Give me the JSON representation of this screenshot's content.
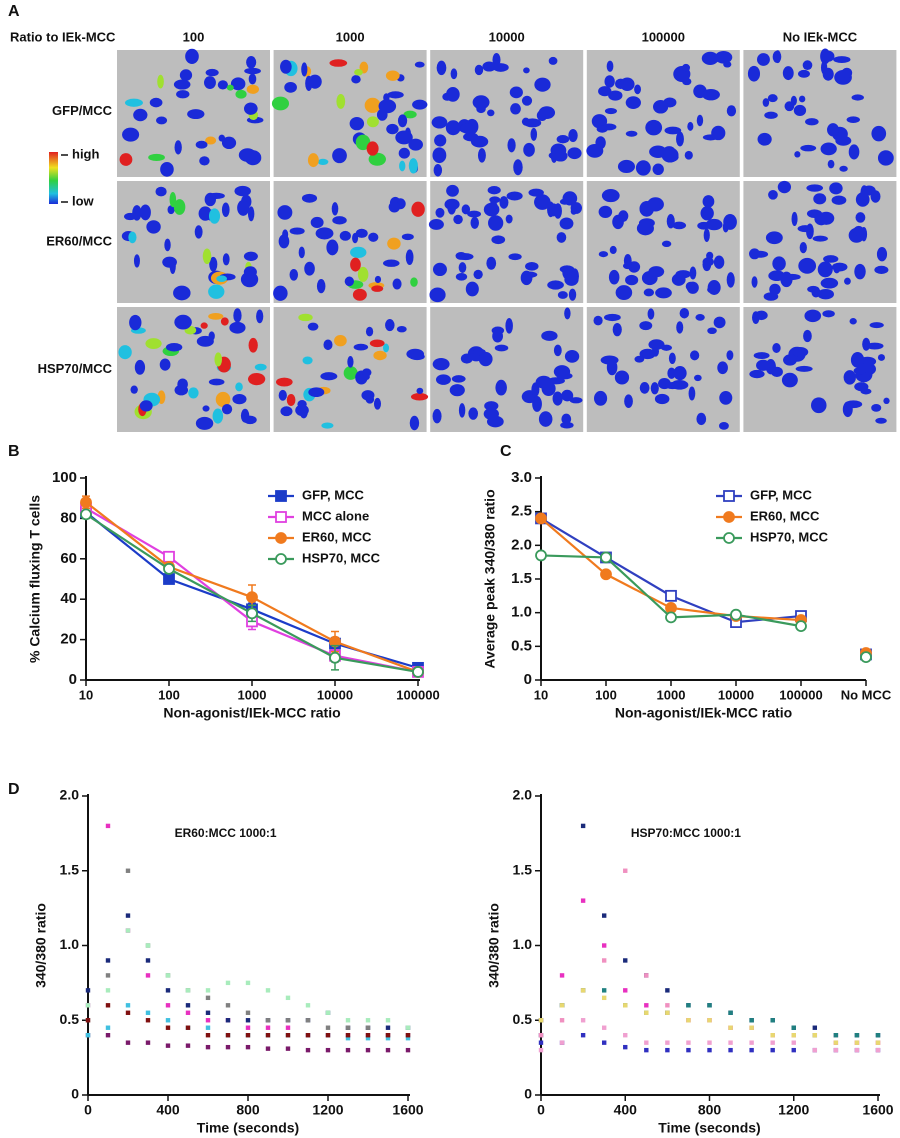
{
  "panel_a": {
    "panel": "A",
    "header": "Ratio to IEk-MCC",
    "columns": [
      "100",
      "1000",
      "10000",
      "100000",
      "No IEk-MCC"
    ],
    "rows": [
      "GFP/MCC",
      "ER60/MCC",
      "HSP70/MCC"
    ],
    "scale_high": "high",
    "scale_low": "low"
  },
  "chart_data": [
    {
      "type": "line",
      "panel": "B",
      "xscale": "log",
      "x": [
        10,
        100,
        1000,
        10000,
        100000
      ],
      "xlim": [
        10,
        100000
      ],
      "xticks": [
        10,
        100,
        1000,
        10000,
        100000
      ],
      "ylim": [
        0,
        100
      ],
      "yticks": [
        0,
        20,
        40,
        60,
        80,
        100
      ],
      "xlabel": "Non-agonist/IEk-MCC ratio",
      "ylabel": "% Calcium fluxing T cells",
      "legend": "upper-right",
      "series": [
        {
          "name": "GFP, MCC",
          "color": "#1c3cc8",
          "marker": "square",
          "filled": true,
          "values": [
            83,
            50,
            35,
            18,
            6
          ],
          "errors": [
            2,
            1,
            3,
            3,
            2
          ]
        },
        {
          "name": "MCC alone",
          "color": "#e040e0",
          "marker": "square",
          "filled": false,
          "values": [
            85,
            61,
            29,
            12,
            4
          ],
          "errors": [
            2,
            2,
            4,
            3,
            1
          ]
        },
        {
          "name": "ER60, MCC",
          "color": "#f07a1e",
          "marker": "circle",
          "filled": true,
          "values": [
            88,
            56,
            41,
            19,
            4
          ],
          "errors": [
            3,
            2,
            6,
            5,
            1
          ]
        },
        {
          "name": "HSP70, MCC",
          "color": "#3a9a5c",
          "marker": "circle",
          "filled": false,
          "values": [
            82,
            55,
            33,
            11,
            4
          ],
          "errors": [
            2,
            2,
            4,
            6,
            1
          ]
        }
      ]
    },
    {
      "type": "line",
      "panel": "C",
      "categories": [
        "10",
        "100",
        "1000",
        "10000",
        "100000",
        "No MCC"
      ],
      "ylim": [
        0,
        3
      ],
      "yticks": [
        0,
        0.5,
        {
          "value": 1,
          "label": "1.0"
        },
        1.5,
        {
          "value": 2,
          "label": "2.0"
        },
        2.5,
        {
          "value": 3,
          "label": "3.0"
        }
      ],
      "xlabel": "Non-agonist/IEk-MCC ratio",
      "ylabel": "Average peak 340/380 ratio",
      "legend": "upper-right",
      "series": [
        {
          "name": "GFP, MCC",
          "color": "#3040c0",
          "marker": "square",
          "filled": false,
          "values": [
            2.4,
            1.82,
            1.25,
            0.86,
            0.95,
            0.38
          ]
        },
        {
          "name": "ER60, MCC",
          "color": "#f07a1e",
          "marker": "circle",
          "filled": true,
          "values": [
            2.4,
            1.57,
            1.07,
            0.95,
            0.89,
            0.4
          ]
        },
        {
          "name": "HSP70, MCC",
          "color": "#3a9a5c",
          "marker": "circle",
          "filled": false,
          "values": [
            1.85,
            1.82,
            0.93,
            0.97,
            0.8,
            0.34
          ]
        }
      ]
    },
    {
      "type": "scatter",
      "panel": "D",
      "title": "ER60:MCC 1000:1",
      "x": [
        0,
        100,
        200,
        300,
        400,
        500,
        600,
        700,
        800,
        900,
        1000,
        1100,
        1200,
        1300,
        1400,
        1500,
        1600
      ],
      "xlim": [
        0,
        1600
      ],
      "xticks": [
        0,
        400,
        800,
        1200,
        1600
      ],
      "ylim": [
        0,
        2
      ],
      "yticks": [
        0,
        0.5,
        {
          "value": 1,
          "label": "1.0"
        },
        1.5,
        {
          "value": 2,
          "label": "2.0"
        }
      ],
      "xlabel": "Time (seconds)",
      "ylabel": "340/380 ratio",
      "series": [
        {
          "color": "#e830c0",
          "values": [
            0.6,
            1.8,
            1.1,
            0.8,
            0.6,
            0.55,
            0.5,
            0.5,
            0.45,
            0.45,
            0.45,
            0.4,
            0.4,
            0.4,
            0.4,
            0.4,
            0.4
          ]
        },
        {
          "color": "#1a2a7a",
          "values": [
            0.7,
            0.9,
            1.2,
            0.9,
            0.7,
            0.6,
            0.55,
            0.5,
            0.5,
            0.5,
            0.5,
            0.5,
            0.55,
            0.45,
            0.45,
            0.45,
            0.45
          ]
        },
        {
          "color": "#808080",
          "values": [
            0.5,
            0.8,
            1.5,
            1.0,
            0.8,
            0.7,
            0.65,
            0.6,
            0.55,
            0.5,
            0.5,
            0.5,
            0.45,
            0.45,
            0.45,
            0.4,
            0.4
          ]
        },
        {
          "color": "#a8ecbc",
          "values": [
            0.6,
            0.7,
            1.1,
            1.0,
            0.8,
            0.7,
            0.7,
            0.75,
            0.75,
            0.7,
            0.65,
            0.6,
            0.55,
            0.5,
            0.5,
            0.5,
            0.45
          ]
        },
        {
          "color": "#7a1a6a",
          "values": [
            0.4,
            0.4,
            0.35,
            0.35,
            0.33,
            0.33,
            0.32,
            0.32,
            0.32,
            0.31,
            0.31,
            0.3,
            0.3,
            0.3,
            0.3,
            0.3,
            0.3
          ]
        },
        {
          "color": "#40c0e0",
          "values": [
            0.4,
            0.45,
            0.6,
            0.55,
            0.5,
            0.45,
            0.45,
            0.4,
            0.4,
            0.4,
            0.4,
            0.4,
            0.4,
            0.38,
            0.38,
            0.38,
            0.38
          ]
        },
        {
          "color": "#801010",
          "values": [
            0.5,
            0.6,
            0.55,
            0.5,
            0.45,
            0.45,
            0.4,
            0.4,
            0.4,
            0.4,
            0.4,
            0.4,
            0.4,
            0.4,
            0.4,
            0.4,
            0.4
          ]
        }
      ]
    },
    {
      "type": "scatter",
      "title": "HSP70:MCC 1000:1",
      "x": [
        0,
        100,
        200,
        300,
        400,
        500,
        600,
        700,
        800,
        900,
        1000,
        1100,
        1200,
        1300,
        1400,
        1500,
        1600
      ],
      "xlim": [
        0,
        1600
      ],
      "xticks": [
        0,
        400,
        800,
        1200,
        1600
      ],
      "ylim": [
        0,
        2
      ],
      "yticks": [
        0,
        0.5,
        {
          "value": 1,
          "label": "1.0"
        },
        1.5,
        {
          "value": 2,
          "label": "2.0"
        }
      ],
      "xlabel": "Time (seconds)",
      "ylabel": "340/380 ratio",
      "series": [
        {
          "color": "#1a2a7a",
          "values": [
            0.4,
            0.6,
            1.8,
            1.2,
            0.9,
            0.8,
            0.7,
            0.6,
            0.6,
            0.55,
            0.5,
            0.5,
            0.45,
            0.45,
            0.4,
            0.4,
            0.4
          ]
        },
        {
          "color": "#e830c0",
          "values": [
            0.5,
            0.8,
            1.3,
            1.0,
            0.7,
            0.6,
            0.55,
            0.5,
            0.5,
            0.45,
            0.45,
            0.4,
            0.4,
            0.4,
            0.35,
            0.35,
            0.35
          ]
        },
        {
          "color": "#f090c0",
          "values": [
            0.4,
            0.5,
            0.7,
            0.9,
            1.5,
            0.8,
            0.6,
            0.5,
            0.5,
            0.45,
            0.45,
            0.4,
            0.4,
            0.4,
            0.4,
            0.35,
            0.35
          ]
        },
        {
          "color": "#208080",
          "values": [
            0.5,
            0.6,
            0.7,
            0.7,
            0.6,
            0.55,
            0.55,
            0.6,
            0.6,
            0.55,
            0.5,
            0.5,
            0.45,
            0.4,
            0.4,
            0.4,
            0.4
          ]
        },
        {
          "color": "#e8d870",
          "values": [
            0.5,
            0.6,
            0.7,
            0.65,
            0.6,
            0.55,
            0.55,
            0.5,
            0.5,
            0.45,
            0.45,
            0.4,
            0.4,
            0.4,
            0.35,
            0.35,
            0.35
          ]
        },
        {
          "color": "#3030c0",
          "values": [
            0.35,
            0.35,
            0.4,
            0.35,
            0.32,
            0.3,
            0.3,
            0.3,
            0.3,
            0.3,
            0.3,
            0.3,
            0.3,
            0.3,
            0.3,
            0.3,
            0.3
          ]
        },
        {
          "color": "#f0a0d0",
          "values": [
            0.3,
            0.35,
            0.5,
            0.45,
            0.4,
            0.35,
            0.35,
            0.35,
            0.35,
            0.35,
            0.35,
            0.35,
            0.35,
            0.3,
            0.3,
            0.3,
            0.3
          ]
        }
      ]
    }
  ]
}
